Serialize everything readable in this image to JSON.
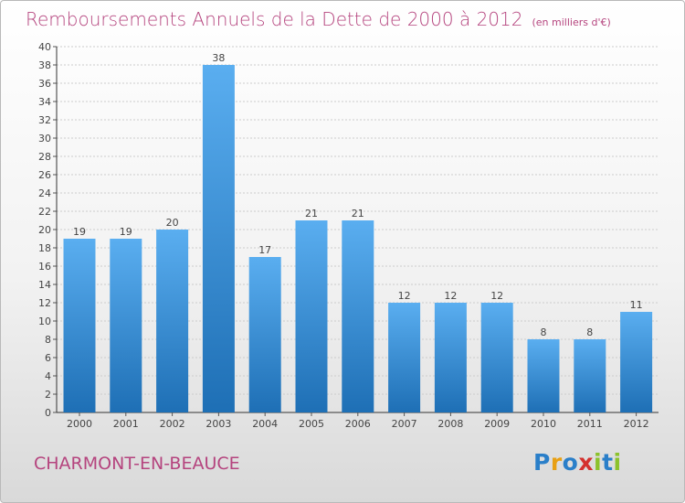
{
  "title": "Remboursements Annuels de la Dette de 2000 à 2012",
  "subtitle": "(en milliers d'€)",
  "place_name": "CHARMONT-EN-BEAUCE",
  "logo": {
    "text": "Proxiti",
    "letter_colors": [
      "#2a7fc9",
      "#e8a014",
      "#2a7fc9",
      "#d4312e",
      "#8cc22d",
      "#2a7fc9",
      "#8cc22d"
    ]
  },
  "colors": {
    "bar_light": "#5aaef0",
    "bar_dark": "#1e6fb5",
    "title": "#b5447e",
    "grid": "#cccccc"
  },
  "chart_data": {
    "type": "bar",
    "title": "Remboursements Annuels de la Dette de 2000 à 2012",
    "subtitle": "(en milliers d'€)",
    "xlabel": "",
    "ylabel": "",
    "categories": [
      "2000",
      "2001",
      "2002",
      "2003",
      "2004",
      "2005",
      "2006",
      "2007",
      "2008",
      "2009",
      "2010",
      "2011",
      "2012"
    ],
    "values": [
      19,
      19,
      20,
      38,
      17,
      21,
      21,
      12,
      12,
      12,
      8,
      8,
      11
    ],
    "ylim": [
      0,
      40
    ],
    "yticks": [
      0,
      2,
      4,
      6,
      8,
      10,
      12,
      14,
      16,
      18,
      20,
      22,
      24,
      26,
      28,
      30,
      32,
      34,
      36,
      38,
      40
    ],
    "grid": true,
    "legend": "none"
  }
}
